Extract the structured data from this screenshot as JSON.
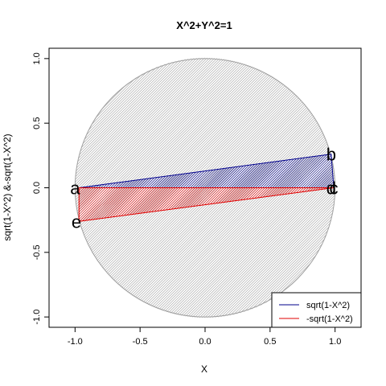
{
  "chart_data": {
    "type": "line",
    "title": "X^2+Y^2=1",
    "xlabel": "X",
    "ylabel": "sqrt(1-X^2) &-sqrt(1-X^2)",
    "xlim": [
      -1.2,
      1.2
    ],
    "ylim": [
      -1.08,
      1.08
    ],
    "xticks": [
      "-1.0",
      "-0.5",
      "0.0",
      "0.5",
      "1.0"
    ],
    "yticks": [
      "-1.0",
      "-0.5",
      "0.0",
      "0.5",
      "1.0"
    ],
    "grid": false,
    "circle": {
      "center": [
        0,
        0
      ],
      "radius": 1,
      "fill": "hatched",
      "color": "#a0a0a0"
    },
    "series": [
      {
        "name": "sqrt(1-X^2)",
        "color": "#00008b",
        "x": [
          -0.97,
          0.97,
          0.99,
          -0.97
        ],
        "y": [
          0.0,
          0.26,
          0.0,
          0.0
        ]
      },
      {
        "name": "-sqrt(1-X^2)",
        "color": "#e00000",
        "x": [
          -0.97,
          0.99,
          -0.97,
          -0.97
        ],
        "y": [
          0.0,
          0.0,
          -0.26,
          0.0
        ]
      }
    ],
    "points": [
      {
        "label": "a",
        "x": -1.0,
        "y": 0.0
      },
      {
        "label": "b",
        "x": 0.97,
        "y": 0.26
      },
      {
        "label": "c",
        "x": 0.99,
        "y": 0.0
      },
      {
        "label": "d",
        "x": 0.97,
        "y": 0.0
      },
      {
        "label": "e",
        "x": -0.99,
        "y": -0.26
      }
    ],
    "legend": "bottom-right"
  }
}
